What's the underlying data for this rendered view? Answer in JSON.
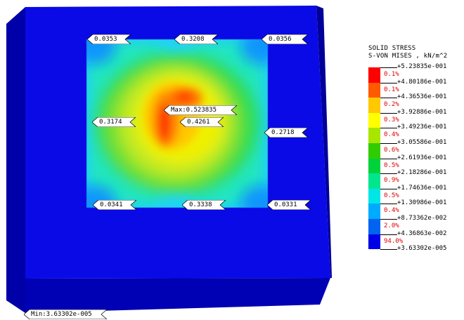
{
  "legend": {
    "title_line1": "SOLID STRESS",
    "title_line2": "S-VON MISES , kN/m^2",
    "bands": [
      {
        "color": "#ff0000",
        "percent": "0.1%"
      },
      {
        "color": "#ff5a00",
        "percent": "0.1%"
      },
      {
        "color": "#ffc800",
        "percent": "0.2%"
      },
      {
        "color": "#ffff00",
        "percent": "0.3%"
      },
      {
        "color": "#a8e600",
        "percent": "0.4%"
      },
      {
        "color": "#32cd00",
        "percent": "0.6%"
      },
      {
        "color": "#00d23c",
        "percent": "0.5%"
      },
      {
        "color": "#00e68c",
        "percent": "0.9%"
      },
      {
        "color": "#00e6e6",
        "percent": "0.5%"
      },
      {
        "color": "#00aaff",
        "percent": "0.4%"
      },
      {
        "color": "#0064f0",
        "percent": "2.0%"
      },
      {
        "color": "#0000e6",
        "percent": "94.0%"
      }
    ],
    "values": [
      "+5.23835e-001",
      "+4.80186e-001",
      "+4.36536e-001",
      "+3.92886e-001",
      "+3.49236e-001",
      "+3.05586e-001",
      "+2.61936e-001",
      "+2.18286e-001",
      "+1.74636e-001",
      "+1.30986e-001",
      "+8.73362e-002",
      "+4.36863e-002",
      "+3.63302e-005"
    ]
  },
  "labels": {
    "top_left": "0.0353",
    "top_center": "0.3208",
    "top_right": "0.0356",
    "mid_left": "0.3174",
    "center": "0.4261",
    "mid_right": "0.2718",
    "bottom_left": "0.0341",
    "bottom_center": "0.3338",
    "bottom_right": "0.0331",
    "max": "Max:0.523835",
    "min": "Min:3.63302e-005"
  },
  "colors": {
    "slab_top": "#0a0ae6",
    "slab_front": "#0000b4",
    "slab_side": "#00009a",
    "max_stress": "#ff0000",
    "min_stress": "#0000e6"
  }
}
